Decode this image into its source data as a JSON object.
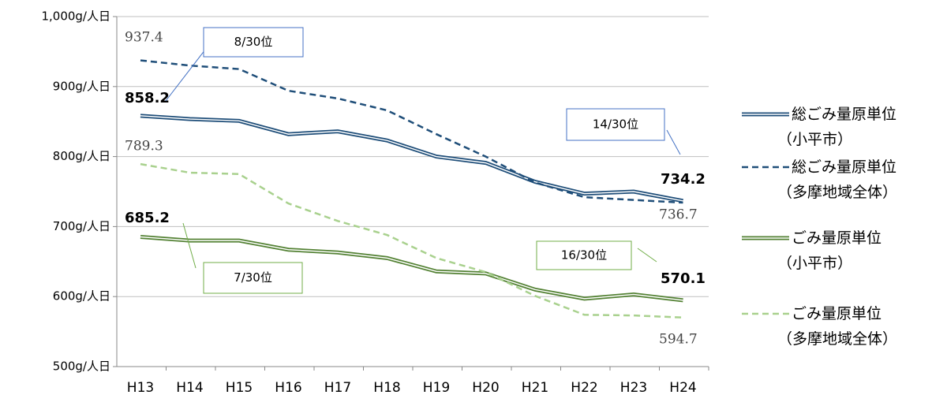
{
  "chart_data": {
    "type": "line",
    "categories": [
      "H13",
      "H14",
      "H15",
      "H16",
      "H17",
      "H18",
      "H19",
      "H20",
      "H21",
      "H22",
      "H23",
      "H24"
    ],
    "series": [
      {
        "name": "総ごみ量原単位（小平市）",
        "color": "#1f4e79",
        "style": "double",
        "values": [
          858.2,
          853.6,
          851,
          832,
          836,
          823,
          800,
          791,
          764,
          747,
          750,
          736.7
        ]
      },
      {
        "name": "総ごみ量原単位（多摩地域全体）",
        "color": "#1f4e79",
        "style": "dashed",
        "values": [
          937.4,
          930,
          925,
          894,
          883,
          866,
          832,
          800,
          763,
          742,
          738,
          734.2
        ]
      },
      {
        "name": "ごみ量原単位（小平市）",
        "color": "#548235",
        "style": "double",
        "values": [
          685.2,
          680,
          680,
          667,
          663,
          655,
          636,
          633,
          610,
          597,
          603,
          594.7
        ]
      },
      {
        "name": "ごみ量原単位（多摩地域全体）",
        "color": "#a9d18e",
        "style": "dashed",
        "values": [
          789.3,
          777,
          775,
          733,
          708,
          688,
          655,
          635,
          601,
          574,
          573,
          570.1
        ]
      }
    ],
    "ylim": [
      500,
      1000
    ],
    "yticks": [
      {
        "value": 500,
        "label": "500g/人日"
      },
      {
        "value": 600,
        "label": "600g/人日"
      },
      {
        "value": 700,
        "label": "700g/人日"
      },
      {
        "value": 800,
        "label": "800g/人日"
      },
      {
        "value": 900,
        "label": "900g/人日"
      },
      {
        "value": 1000,
        "label": "1,000g/人日"
      }
    ],
    "grid": true,
    "annotations": [
      {
        "text": "8/30位",
        "color": "#4472c4"
      },
      {
        "text": "14/30位",
        "color": "#4472c4"
      },
      {
        "text": "7/30位",
        "color": "#70ad47"
      },
      {
        "text": "16/30位",
        "color": "#70ad47"
      }
    ]
  }
}
